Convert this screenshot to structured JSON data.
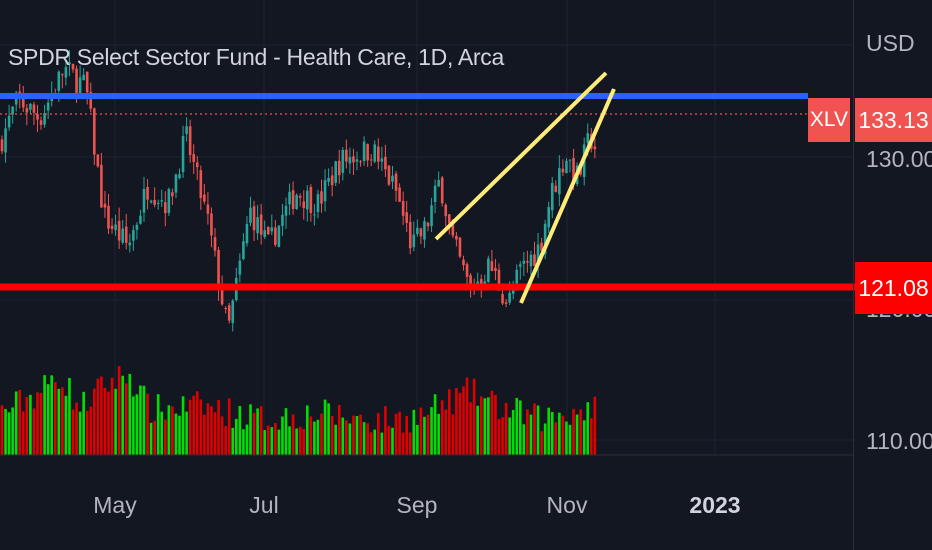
{
  "header": {
    "title": "SPDR Select Sector Fund - Health Care, 1D, Arca",
    "currency": "USD"
  },
  "price_axis": {
    "ticks": [
      {
        "label": "130.00",
        "value": 130.0
      },
      {
        "label": "110.00",
        "value": 110.0
      }
    ],
    "symbol_tag": "XLV",
    "last_price_label": "133.13",
    "support_label": "121.08",
    "partially_hidden_tick": "120.00"
  },
  "time_axis": {
    "ticks": [
      {
        "label": "May",
        "bold": false
      },
      {
        "label": "Jul",
        "bold": false
      },
      {
        "label": "Sep",
        "bold": false
      },
      {
        "label": "Nov",
        "bold": false
      },
      {
        "label": "2023",
        "bold": true
      }
    ]
  },
  "colors": {
    "background": "#131722",
    "up": "#26a69a",
    "down": "#ef5350",
    "volume_up": "#00e000",
    "volume_down": "#e00000",
    "resistance": "#2962ff",
    "support": "#ff0000",
    "wedge": "#ffeb7a",
    "last_price_line": "#f05350"
  },
  "chart_data": {
    "type": "candlestick",
    "symbol": "XLV",
    "interval": "1D",
    "exchange": "Arca",
    "series_path": [
      [
        0,
        134.0
      ],
      [
        18,
        137.5
      ],
      [
        40,
        136.0
      ],
      [
        64,
        140.0
      ],
      [
        86,
        138.5
      ],
      [
        104,
        128.0
      ],
      [
        128,
        125.5
      ],
      [
        148,
        130.5
      ],
      [
        168,
        129.0
      ],
      [
        186,
        134.5
      ],
      [
        208,
        127.5
      ],
      [
        228,
        118.5
      ],
      [
        250,
        128.5
      ],
      [
        268,
        125.5
      ],
      [
        296,
        130.0
      ],
      [
        318,
        129.0
      ],
      [
        340,
        132.5
      ],
      [
        372,
        133.5
      ],
      [
        396,
        130.0
      ],
      [
        412,
        125.5
      ],
      [
        426,
        127.0
      ],
      [
        440,
        131.0
      ],
      [
        452,
        126.0
      ],
      [
        470,
        122.0
      ],
      [
        490,
        124.0
      ],
      [
        508,
        120.8
      ],
      [
        520,
        123.5
      ],
      [
        540,
        125.5
      ],
      [
        550,
        129.5
      ],
      [
        566,
        133.0
      ],
      [
        578,
        131.0
      ],
      [
        590,
        134.5
      ],
      [
        598,
        133.13
      ]
    ],
    "volume_profile": [
      [
        0,
        0.35
      ],
      [
        40,
        0.55
      ],
      [
        60,
        0.7
      ],
      [
        80,
        0.4
      ],
      [
        104,
        0.6
      ],
      [
        128,
        0.72
      ],
      [
        150,
        0.38
      ],
      [
        200,
        0.42
      ],
      [
        260,
        0.3
      ],
      [
        320,
        0.35
      ],
      [
        380,
        0.28
      ],
      [
        420,
        0.32
      ],
      [
        470,
        0.55
      ],
      [
        500,
        0.4
      ],
      [
        540,
        0.3
      ],
      [
        598,
        0.42
      ]
    ],
    "last_price": 133.13,
    "levels": [
      {
        "name": "resistance",
        "price": 134.5
      },
      {
        "name": "support",
        "price": 121.08
      }
    ],
    "rising_wedge": {
      "upper": [
        [
          "2022-09-08",
          124.5
        ],
        [
          "2022-11-21",
          137.0
        ]
      ],
      "lower": [
        [
          "2022-10-13",
          119.5
        ],
        [
          "2022-11-21",
          136.0
        ]
      ]
    },
    "y_range": [
      108.5,
      144.0
    ],
    "x_ticks": [
      "May",
      "Jul",
      "Sep",
      "Nov",
      "2023"
    ],
    "grid": true
  }
}
